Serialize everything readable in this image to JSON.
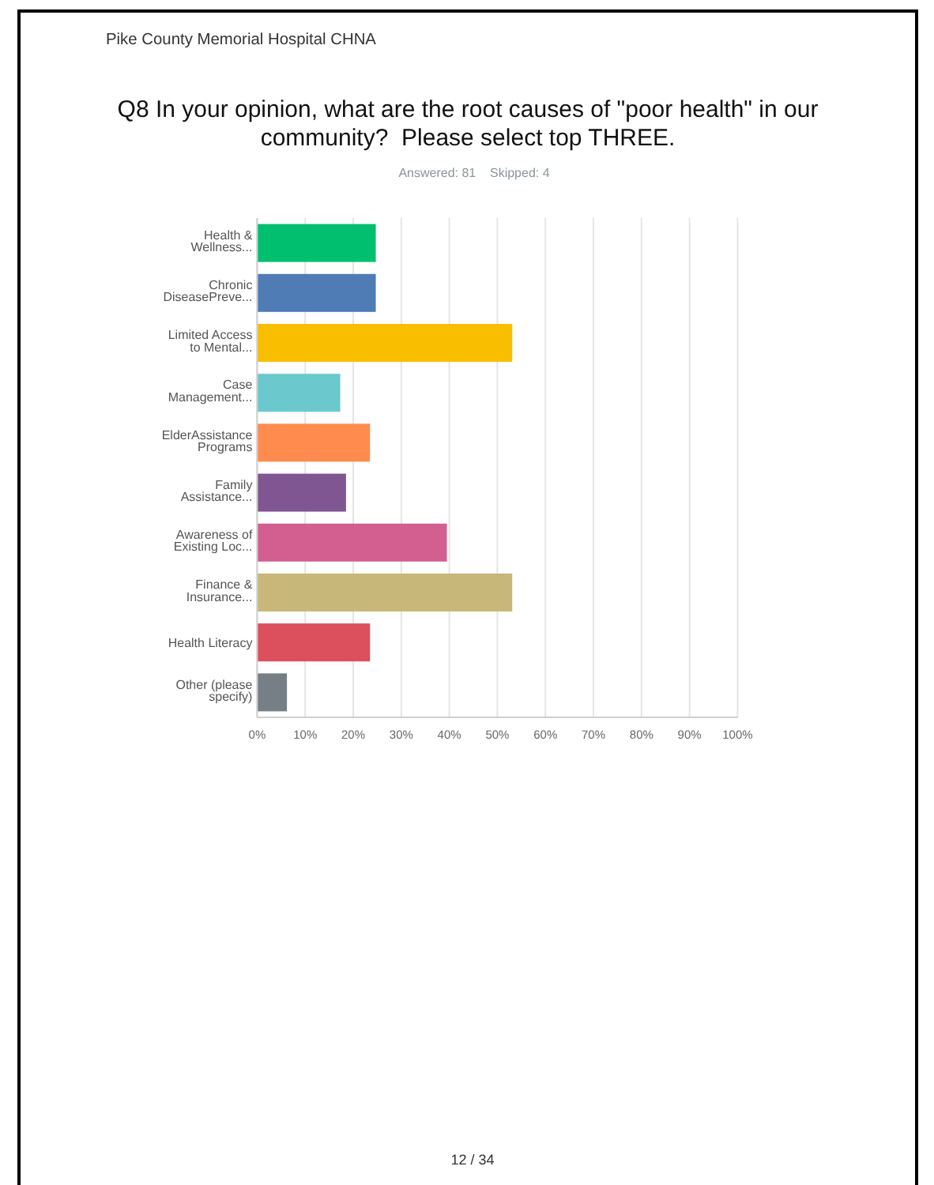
{
  "chart_data": {
    "type": "bar",
    "orientation": "horizontal",
    "title": "Q8 In your opinion, what are the root causes of \"poor health\" in our community?  Please select top THREE.",
    "subtitle": "Answered: 81    Skipped: 4",
    "annotations": [
      "Pike County Memorial Hospital CHNA",
      "12 / 34"
    ],
    "categories": [
      "Health & Wellness...",
      "Chronic DiseasePreve...",
      "Limited Access to Mental...",
      "Case Management...",
      "ElderAssistance Programs",
      "Family Assistance...",
      "Awareness of Existing Loc...",
      "Finance & Insurance...",
      "Health Literacy",
      "Other (please specify)"
    ],
    "values": [
      24.7,
      24.7,
      53.1,
      17.3,
      23.5,
      18.5,
      39.5,
      53.1,
      23.5,
      6.2
    ],
    "colors": [
      "#00bf6f",
      "#507cb6",
      "#f9be00",
      "#6bc8cd",
      "#ff8b4f",
      "#7f5691",
      "#d25f90",
      "#c7b879",
      "#dc4f5d",
      "#757f85"
    ],
    "xlim": [
      0,
      100
    ],
    "xticks": [
      {
        "value": 0,
        "label": "0%"
      },
      {
        "value": 10,
        "label": "10%"
      },
      {
        "value": 20,
        "label": "20%"
      },
      {
        "value": 30,
        "label": "30%"
      },
      {
        "value": 40,
        "label": "40%"
      },
      {
        "value": 50,
        "label": "50%"
      },
      {
        "value": 60,
        "label": "60%"
      },
      {
        "value": 70,
        "label": "70%"
      },
      {
        "value": 80,
        "label": "80%"
      },
      {
        "value": 90,
        "label": "90%"
      },
      {
        "value": 100,
        "label": "100%"
      }
    ],
    "grid": "x"
  }
}
